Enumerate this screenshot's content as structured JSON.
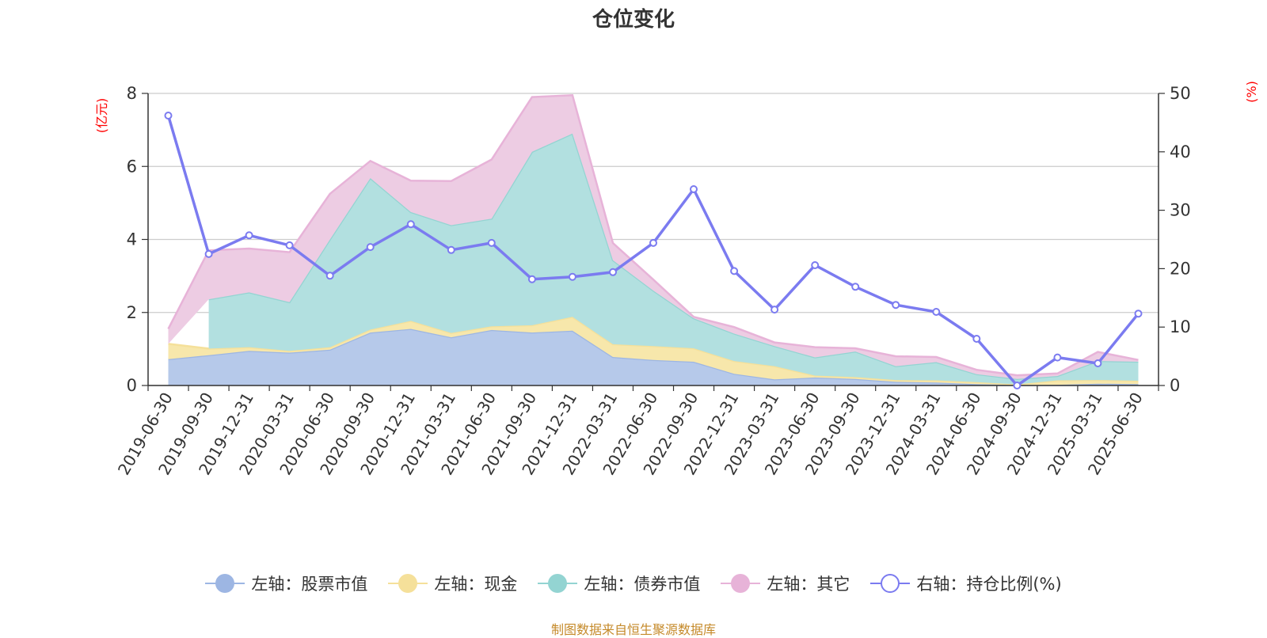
{
  "page": {
    "title": "仓位变化",
    "source_note": "制图数据来自恒生聚源数据库"
  },
  "chart_data": {
    "type": "area",
    "title": "仓位变化",
    "x": [
      "2019-06-30",
      "2019-09-30",
      "2019-12-31",
      "2020-03-31",
      "2020-06-30",
      "2020-09-30",
      "2020-12-31",
      "2021-03-31",
      "2021-06-30",
      "2021-09-30",
      "2021-12-31",
      "2022-03-31",
      "2022-06-30",
      "2022-09-30",
      "2022-12-31",
      "2023-03-31",
      "2023-06-30",
      "2023-09-30",
      "2023-12-31",
      "2024-03-31",
      "2024-06-30",
      "2024-09-30",
      "2024-12-31",
      "2025-03-31",
      "2025-06-30"
    ],
    "left_axis": {
      "unit_label": "(亿元)",
      "ylim": [
        0,
        8
      ],
      "ticks": [
        "0",
        "2",
        "4",
        "6",
        "8"
      ]
    },
    "right_axis": {
      "unit_label": "(%)",
      "ylim": [
        0,
        50
      ],
      "ticks": [
        "0",
        "10",
        "20",
        "30",
        "40",
        "50"
      ]
    },
    "stacked": true,
    "grid": true,
    "legend_position": "bottom",
    "series": [
      {
        "name": "左轴：股票市值",
        "axis": "left",
        "kind": "area",
        "color": "#9db6e3",
        "fill": "#b6c9ea",
        "values": [
          0.72,
          0.83,
          0.95,
          0.9,
          0.98,
          1.45,
          1.55,
          1.32,
          1.52,
          1.45,
          1.5,
          0.78,
          0.7,
          0.65,
          0.32,
          0.17,
          0.22,
          0.18,
          0.1,
          0.08,
          0.04,
          0.01,
          0.02,
          0.05,
          0.04
        ]
      },
      {
        "name": "左轴：现金",
        "axis": "left",
        "kind": "area",
        "color": "#f5e09a",
        "fill": "#f7e7ab",
        "values": [
          0.42,
          0.18,
          0.1,
          0.05,
          0.07,
          0.08,
          0.22,
          0.12,
          0.1,
          0.2,
          0.38,
          0.35,
          0.38,
          0.37,
          0.35,
          0.36,
          0.05,
          0.05,
          0.05,
          0.06,
          0.05,
          0.02,
          0.12,
          0.1,
          0.09
        ]
      },
      {
        "name": "左轴：债券市值",
        "axis": "left",
        "kind": "area",
        "color": "#93d4d2",
        "fill": "#b2e0e0",
        "values": [
          0.0,
          1.35,
          1.5,
          1.33,
          2.95,
          4.15,
          2.98,
          2.95,
          2.95,
          4.75,
          5.02,
          2.3,
          1.52,
          0.82,
          0.75,
          0.55,
          0.5,
          0.7,
          0.38,
          0.5,
          0.22,
          0.15,
          0.12,
          0.52,
          0.52
        ]
      },
      {
        "name": "左轴：其它",
        "axis": "left",
        "kind": "area",
        "color": "#e7b3d8",
        "fill": "#edcce3",
        "values": [
          0.41,
          1.34,
          1.2,
          1.37,
          1.25,
          0.47,
          0.86,
          1.21,
          1.62,
          1.5,
          1.05,
          0.47,
          0.3,
          0.04,
          0.18,
          0.1,
          0.28,
          0.09,
          0.27,
          0.14,
          0.12,
          0.1,
          0.07,
          0.25,
          0.05
        ]
      },
      {
        "name": "右轴：持仓比例(%)",
        "axis": "right",
        "kind": "line",
        "color": "#7b7bf0",
        "values": [
          46.2,
          22.5,
          25.7,
          24.0,
          18.8,
          23.7,
          27.6,
          23.2,
          24.4,
          18.2,
          18.6,
          19.4,
          24.4,
          33.6,
          19.6,
          13.0,
          20.6,
          16.9,
          13.8,
          12.6,
          8.0,
          0.0,
          4.8,
          3.8,
          12.3
        ]
      }
    ]
  }
}
